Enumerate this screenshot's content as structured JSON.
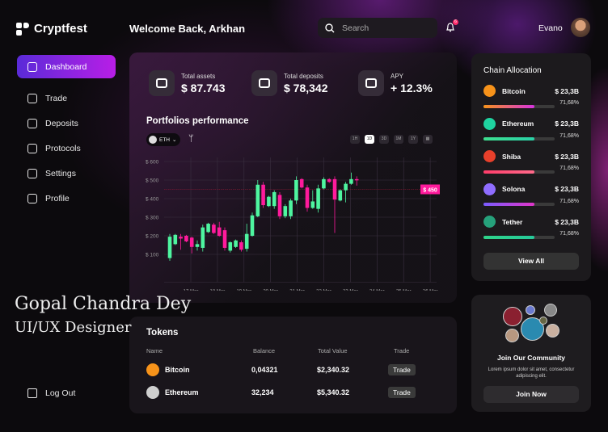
{
  "app": {
    "name": "Cryptfest"
  },
  "header": {
    "welcome": "Welcome Back, Arkhan",
    "search_placeholder": "Search",
    "notification_count": "6",
    "user": "Evano"
  },
  "sidebar": {
    "items": [
      {
        "label": "Dashboard",
        "icon": "dashboard-icon",
        "active": true
      },
      {
        "label": "Trade",
        "icon": "chart-icon"
      },
      {
        "label": "Deposits",
        "icon": "deposit-icon"
      },
      {
        "label": "Protocols",
        "icon": "protocol-icon"
      },
      {
        "label": "Settings",
        "icon": "settings-icon"
      },
      {
        "label": "Profile",
        "icon": "user-icon"
      }
    ],
    "logout": "Log Out"
  },
  "watermark": {
    "name": "Gopal Chandra Dey",
    "role": "UI/UX Designer"
  },
  "stats": [
    {
      "label": "Total assets",
      "value": "$ 87.743",
      "icon": "money-icon"
    },
    {
      "label": "Total deposits",
      "value": "$ 78,342",
      "icon": "deposit-icon"
    },
    {
      "label": "APY",
      "value": "+ 12.3%",
      "icon": "bar-chart-icon"
    }
  ],
  "portfolio": {
    "title": "Portfolios performance",
    "asset": "ETH",
    "timeframes": [
      "1H",
      "1D",
      "3D",
      "1M",
      "1Y"
    ],
    "active_timeframe": "1D"
  },
  "chart_data": {
    "type": "candlestick",
    "y_ticks": [
      "$ 100",
      "$ 200",
      "$ 300",
      "$ 400",
      "$ 500",
      "$ 600"
    ],
    "x_ticks": [
      "17 Mar",
      "18 Mar",
      "19 Mar",
      "20 Mar",
      "21 Mar",
      "22 Mar",
      "23 Mar",
      "24 Mar",
      "25 Mar",
      "26 Mar"
    ],
    "ylim": [
      0,
      600
    ],
    "current_price_label": "$ 450",
    "current_price": 450,
    "grid": true,
    "candles": [
      [
        80,
        195,
        210,
        65
      ],
      [
        155,
        205,
        210,
        150
      ],
      [
        195,
        185,
        210,
        125
      ],
      [
        200,
        170,
        205,
        165
      ],
      [
        190,
        140,
        195,
        105
      ],
      [
        140,
        155,
        175,
        120
      ],
      [
        135,
        245,
        260,
        115
      ],
      [
        220,
        265,
        270,
        215
      ],
      [
        260,
        215,
        270,
        210
      ],
      [
        245,
        200,
        275,
        195
      ],
      [
        230,
        135,
        245,
        120
      ],
      [
        120,
        165,
        170,
        110
      ],
      [
        140,
        175,
        180,
        135
      ],
      [
        165,
        125,
        175,
        115
      ],
      [
        130,
        210,
        265,
        115
      ],
      [
        200,
        310,
        325,
        195
      ],
      [
        305,
        475,
        500,
        300
      ],
      [
        475,
        365,
        490,
        350
      ],
      [
        360,
        410,
        415,
        355
      ],
      [
        360,
        435,
        445,
        345
      ],
      [
        420,
        305,
        435,
        290
      ],
      [
        305,
        360,
        370,
        295
      ],
      [
        305,
        390,
        400,
        290
      ],
      [
        390,
        500,
        520,
        370
      ],
      [
        505,
        460,
        510,
        455
      ],
      [
        460,
        350,
        475,
        330
      ],
      [
        350,
        385,
        445,
        345
      ],
      [
        345,
        455,
        475,
        325
      ],
      [
        455,
        505,
        515,
        450
      ],
      [
        505,
        490,
        510,
        485
      ],
      [
        505,
        395,
        520,
        215
      ],
      [
        390,
        445,
        450,
        385
      ],
      [
        445,
        480,
        490,
        380
      ],
      [
        480,
        505,
        540,
        475
      ],
      [
        505,
        500,
        520,
        470
      ]
    ],
    "up_color": "#4ef5a0",
    "down_color": "#ff1a9c"
  },
  "tokens": {
    "title": "Tokens",
    "columns": [
      "Name",
      "Balance",
      "Total Value",
      "Trade"
    ],
    "rows": [
      {
        "name": "Bitcoin",
        "balance": "0,04321",
        "value": "$2,340.32",
        "trade": "Trade",
        "color": "#f7931a"
      },
      {
        "name": "Ethereum",
        "balance": "32,234",
        "value": "$5,340.32",
        "trade": "Trade",
        "color": "#cfcfcf"
      }
    ]
  },
  "chain": {
    "title": "Chain Allocation",
    "items": [
      {
        "name": "Bitcoin",
        "amount": "$ 23,3B",
        "pct": "71,68%",
        "fill": 71.68,
        "color": "#f7931a",
        "bar": "linear-gradient(90deg,#f7931a,#d632e0)"
      },
      {
        "name": "Ethereum",
        "amount": "$ 23,3B",
        "pct": "71,68%",
        "fill": 71.68,
        "color": "#1fd3a0",
        "bar": "linear-gradient(90deg,#3ee08f,#2ad1a8)"
      },
      {
        "name": "Shiba",
        "amount": "$ 23,3B",
        "pct": "71,68%",
        "fill": 71.68,
        "color": "#e8402b",
        "bar": "linear-gradient(90deg,#ff3d6a,#ff6a8a)"
      },
      {
        "name": "Solona",
        "amount": "$ 23,3B",
        "pct": "71,68%",
        "fill": 71.68,
        "color": "#8f6dff",
        "bar": "linear-gradient(90deg,#7a5cff,#e035c8)"
      },
      {
        "name": "Tether",
        "amount": "$ 23,3B",
        "pct": "71,68%",
        "fill": 71.68,
        "color": "#26a17b",
        "bar": "linear-gradient(90deg,#2fd48a,#26c99a)"
      }
    ],
    "view_all": "View All"
  },
  "community": {
    "title": "Join Our Community",
    "text": "Lorem ipsum dolor sit amet, consectetur adipiscing elit.",
    "button": "Join Now"
  }
}
